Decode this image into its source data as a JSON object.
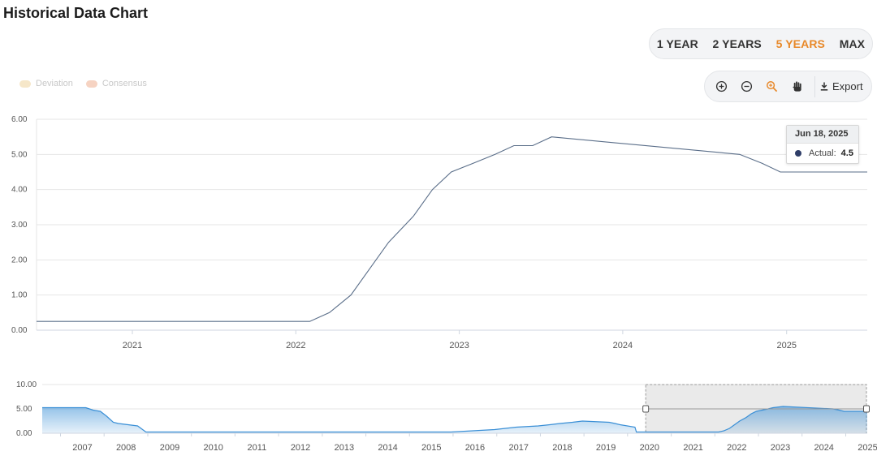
{
  "page": {
    "title": "Historical Data Chart"
  },
  "range_selector": {
    "buttons": [
      "1 YEAR",
      "2 YEARS",
      "5 YEARS",
      "MAX"
    ],
    "active": "5 YEARS"
  },
  "legend": {
    "items": [
      {
        "label": "Deviation",
        "color": "#f6e7c9"
      },
      {
        "label": "Consensus",
        "color": "#f6d3c2"
      }
    ]
  },
  "toolbar": {
    "zoom_in_icon": "zoom-in-icon",
    "zoom_out_icon": "zoom-out-icon",
    "zoom_select_icon": "magnify-icon",
    "pan_icon": "hand-icon",
    "export_label": "Export"
  },
  "tooltip": {
    "date": "Jun 18, 2025",
    "label": "Actual:",
    "value": "4.5",
    "color": "#2f3e68"
  },
  "colors": {
    "line": "#5a6e89",
    "navigator": "#3a8fd6",
    "active_range": "#e8892a"
  },
  "chart_data": [
    {
      "type": "line",
      "title": "Historical Data Chart",
      "series": [
        {
          "name": "Actual",
          "x": [
            "2020-06-01",
            "2022-02-01",
            "2022-03-17",
            "2022-05-04",
            "2022-06-15",
            "2022-07-27",
            "2022-09-21",
            "2022-11-02",
            "2022-12-14",
            "2023-02-01",
            "2023-03-22",
            "2023-05-03",
            "2023-06-14",
            "2023-07-26",
            "2024-09-18",
            "2024-11-07",
            "2024-12-18",
            "2025-06-18",
            "2025-06-30"
          ],
          "y": [
            0.25,
            0.25,
            0.5,
            1.0,
            1.75,
            2.5,
            3.25,
            4.0,
            4.5,
            4.75,
            5.0,
            5.25,
            5.25,
            5.5,
            5.0,
            4.75,
            4.5,
            4.5,
            4.5
          ]
        }
      ],
      "x_tick_labels": [
        "2021",
        "2022",
        "2023",
        "2024",
        "2025"
      ],
      "y_tick_labels": [
        "0.00",
        "1.00",
        "2.00",
        "3.00",
        "4.00",
        "5.00",
        "6.00"
      ],
      "ylim": [
        0,
        6
      ],
      "xlim": [
        "2020-06-01",
        "2025-06-30"
      ],
      "grid": true
    },
    {
      "type": "area",
      "series": [
        {
          "name": "Actual",
          "x": [
            "2006-08-01",
            "2007-08-01",
            "2007-10-01",
            "2007-12-01",
            "2008-01-22",
            "2008-03-18",
            "2008-04-30",
            "2008-10-08",
            "2008-12-16",
            "2015-12-16",
            "2016-12-14",
            "2017-03-15",
            "2017-06-14",
            "2017-12-13",
            "2018-03-21",
            "2018-06-13",
            "2018-09-26",
            "2018-12-19",
            "2019-07-31",
            "2019-09-18",
            "2019-10-30",
            "2020-03-03",
            "2020-03-15",
            "2022-02-01",
            "2022-03-17",
            "2022-05-04",
            "2022-06-15",
            "2022-07-27",
            "2022-09-21",
            "2022-11-02",
            "2022-12-14",
            "2023-02-01",
            "2023-03-22",
            "2023-05-03",
            "2023-07-26",
            "2024-09-18",
            "2024-11-07",
            "2024-12-18",
            "2025-06-30"
          ],
          "y": [
            5.25,
            5.25,
            4.75,
            4.5,
            3.5,
            2.25,
            2.0,
            1.5,
            0.25,
            0.25,
            0.75,
            1.0,
            1.25,
            1.5,
            1.75,
            2.0,
            2.25,
            2.5,
            2.25,
            2.0,
            1.75,
            1.25,
            0.25,
            0.25,
            0.5,
            1.0,
            1.75,
            2.5,
            3.25,
            4.0,
            4.5,
            4.75,
            5.0,
            5.25,
            5.5,
            5.0,
            4.75,
            4.5,
            4.5
          ]
        }
      ],
      "x_tick_labels": [
        "2007",
        "2008",
        "2009",
        "2010",
        "2011",
        "2012",
        "2013",
        "2014",
        "2015",
        "2016",
        "2017",
        "2018",
        "2019",
        "2020",
        "2021",
        "2022",
        "2023",
        "2024",
        "2025"
      ],
      "y_tick_labels": [
        "0.00",
        "5.00",
        "10.00"
      ],
      "ylim": [
        0,
        10
      ],
      "xlim": [
        "2006-08-01",
        "2025-06-30"
      ],
      "selected_range": [
        "2020-06-01",
        "2025-06-30"
      ]
    }
  ]
}
